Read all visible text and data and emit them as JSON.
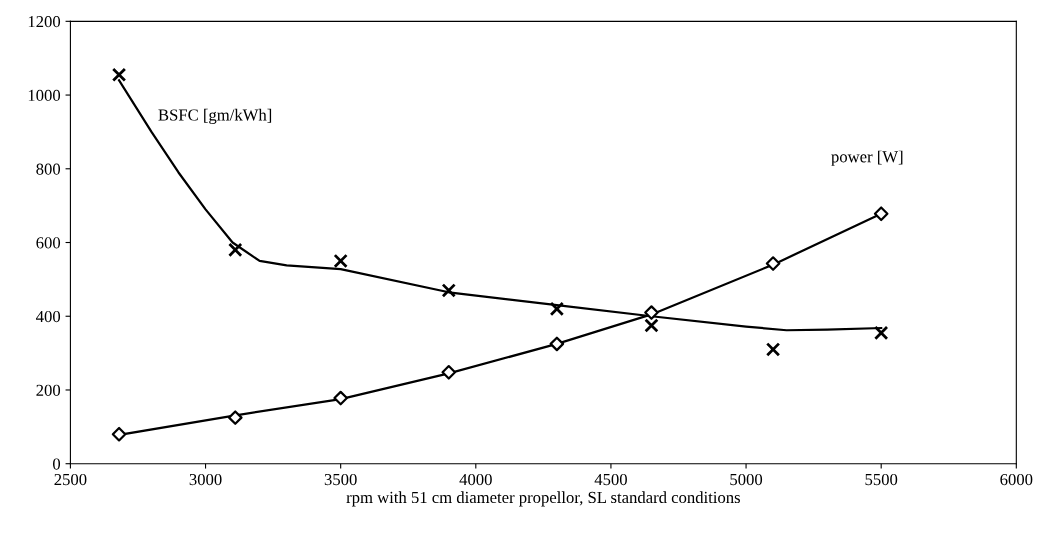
{
  "chart_data": {
    "type": "scatter",
    "xlabel": "rpm with 51 cm diameter propellor, SL standard conditions",
    "xlim": [
      2500,
      6000
    ],
    "xticks": [
      2500,
      3000,
      3500,
      4000,
      4500,
      5000,
      5500,
      6000
    ],
    "ylim": [
      0,
      1200
    ],
    "yticks": [
      0,
      200,
      400,
      600,
      800,
      1000,
      1200
    ],
    "grid": false,
    "legend": false,
    "series": [
      {
        "name": "BSFC [gm/kWh]",
        "marker": "cross",
        "color": "#000000",
        "x": [
          2680,
          3110,
          3500,
          3900,
          4300,
          4650,
          5100,
          5500
        ],
        "values": [
          1055,
          580,
          550,
          470,
          420,
          375,
          310,
          355
        ]
      },
      {
        "name": "power [W]",
        "marker": "diamond",
        "color": "#000000",
        "x": [
          2680,
          3110,
          3500,
          3900,
          4300,
          4650,
          5100,
          5500
        ],
        "values": [
          80,
          125,
          178,
          248,
          325,
          410,
          543,
          678
        ]
      },
      {
        "type": "line",
        "line_style": "solid",
        "color": "#000000",
        "x": [
          2680,
          2800,
          2900,
          3000,
          3100,
          3200,
          3300,
          3500,
          3900,
          4300,
          4650,
          5000,
          5150,
          5300,
          5500
        ],
        "values": [
          1040,
          900,
          790,
          690,
          600,
          550,
          538,
          528,
          465,
          430,
          400,
          372,
          362,
          364,
          368
        ]
      },
      {
        "type": "line",
        "line_style": "solid",
        "color": "#000000",
        "x": [
          2680,
          3100,
          3500,
          3900,
          4300,
          4650,
          5100,
          5500
        ],
        "values": [
          78,
          130,
          175,
          245,
          325,
          405,
          540,
          678
        ]
      }
    ]
  }
}
